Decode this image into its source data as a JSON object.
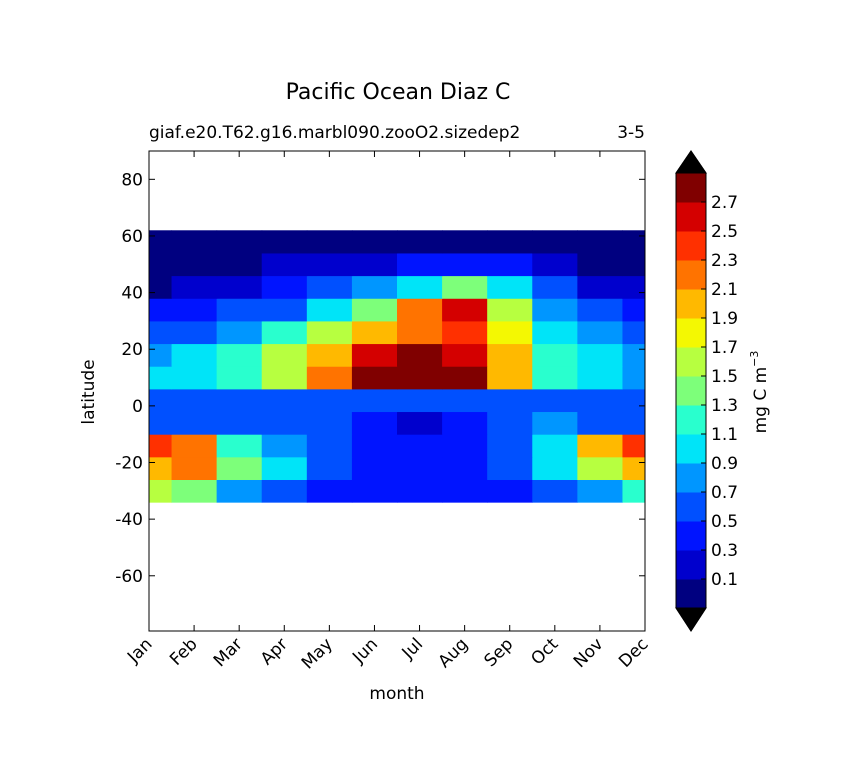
{
  "chart_data": {
    "type": "contour",
    "title": "Pacific Ocean Diaz C",
    "subtitle_left": "giaf.e20.T62.g16.marbl090.zooO2.sizedep2",
    "subtitle_right": "3-5",
    "xlabel": "month",
    "ylabel": "latitude",
    "categories": [
      "Jan",
      "Feb",
      "Mar",
      "Apr",
      "May",
      "Jun",
      "Jul",
      "Aug",
      "Sep",
      "Oct",
      "Nov",
      "Dec"
    ],
    "ylim": [
      -79.5,
      90
    ],
    "yticks": [
      -60,
      -40,
      -20,
      0,
      20,
      40,
      60,
      80
    ],
    "lat": [
      -30,
      -22,
      -14,
      -6,
      2,
      10,
      18,
      26,
      34,
      42,
      50,
      58
    ],
    "z": [
      [
        1.6,
        1.3,
        0.8,
        0.6,
        0.45,
        0.35,
        0.3,
        0.35,
        0.4,
        0.5,
        0.8,
        1.2
      ],
      [
        2.0,
        2.1,
        1.4,
        0.9,
        0.6,
        0.45,
        0.4,
        0.45,
        0.6,
        0.9,
        1.6,
        1.9
      ],
      [
        2.4,
        2.2,
        1.2,
        0.8,
        0.6,
        0.45,
        0.3,
        0.35,
        0.5,
        1.0,
        2.0,
        2.4
      ],
      [
        0.6,
        0.6,
        0.6,
        0.55,
        0.5,
        0.3,
        0.25,
        0.3,
        0.5,
        0.7,
        0.6,
        0.6
      ],
      [
        0.6,
        0.55,
        0.6,
        0.6,
        0.6,
        0.6,
        0.6,
        0.55,
        0.5,
        0.5,
        0.55,
        0.6
      ],
      [
        0.9,
        1.0,
        1.2,
        1.5,
        2.2,
        2.9,
        3.0,
        2.9,
        2.0,
        1.2,
        0.9,
        0.8
      ],
      [
        0.8,
        0.9,
        1.1,
        1.5,
        2.0,
        2.6,
        2.7,
        2.6,
        1.9,
        1.2,
        0.9,
        0.7
      ],
      [
        0.5,
        0.6,
        0.8,
        1.1,
        1.6,
        2.0,
        2.2,
        2.3,
        1.7,
        1.0,
        0.7,
        0.5
      ],
      [
        0.4,
        0.45,
        0.5,
        0.6,
        0.9,
        1.3,
        2.2,
        2.5,
        1.5,
        0.8,
        0.6,
        0.45
      ],
      [
        0.05,
        0.1,
        0.15,
        0.3,
        0.5,
        0.8,
        1.0,
        1.4,
        1.0,
        0.5,
        0.2,
        0.1
      ],
      [
        0.05,
        0.05,
        0.05,
        0.1,
        0.15,
        0.2,
        0.3,
        0.4,
        0.3,
        0.15,
        0.05,
        0.05
      ],
      [
        0.05,
        0.05,
        0.05,
        0.05,
        0.05,
        0.05,
        0.05,
        0.05,
        0.05,
        0.05,
        0.05,
        0.05
      ]
    ],
    "levels": [
      0.1,
      0.3,
      0.5,
      0.7,
      0.9,
      1.1,
      1.3,
      1.5,
      1.7,
      1.9,
      2.1,
      2.3,
      2.5,
      2.7
    ],
    "colors": [
      "#000080",
      "#0000cd",
      "#0014ff",
      "#0050ff",
      "#0096ff",
      "#00e4f8",
      "#29ffce",
      "#7dff7a",
      "#b7ff40",
      "#f4f802",
      "#ffb900",
      "#ff7300",
      "#ff3000",
      "#d40000",
      "#800000"
    ],
    "extend_color": "#000000",
    "colorbar_label": "mg C m",
    "colorbar_label_sup": "−3"
  }
}
